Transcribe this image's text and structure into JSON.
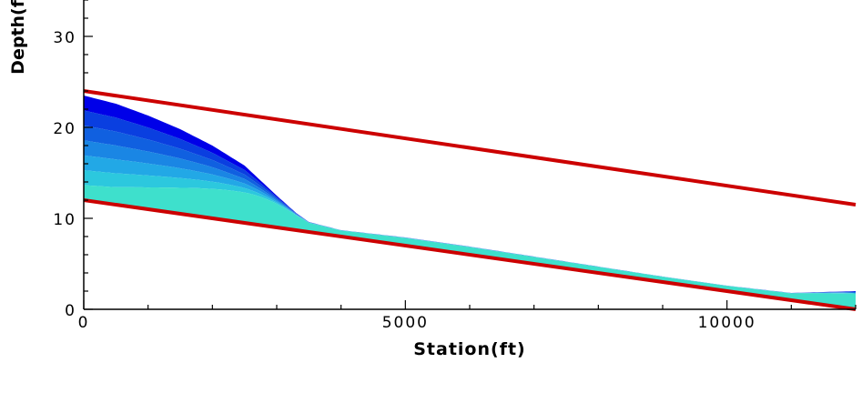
{
  "chart_data": {
    "type": "area",
    "xlabel": "Station(ft)",
    "ylabel": "Depth(f",
    "xlim": [
      0,
      12000
    ],
    "ylim": [
      0,
      34
    ],
    "x_ticks": [
      0,
      5000,
      10000
    ],
    "y_ticks": [
      0,
      10,
      20,
      30
    ],
    "x_tick_labels": [
      "0",
      "5000",
      "10000"
    ],
    "y_tick_labels": [
      "0",
      "10",
      "20",
      "30"
    ],
    "grid": false,
    "colors": {
      "boundary": "#cc0000",
      "fill_levels": [
        "#0000e8",
        "#0a3fe0",
        "#1060e0",
        "#1a86e4",
        "#22a8e6",
        "#2cc8de",
        "#3ee0cc"
      ],
      "axis": "#000000"
    },
    "series": [
      {
        "x": [
          0,
          12000
        ],
        "y": [
          24.0,
          11.5
        ]
      },
      {
        "x": [
          0,
          12000
        ],
        "y": [
          12.0,
          0.0
        ]
      }
    ],
    "water_surface": {
      "x": [
        0,
        500,
        1000,
        1500,
        2000,
        2500,
        3000,
        3300,
        3500,
        4000,
        5000,
        6000,
        7000,
        8000,
        9000,
        10000,
        11000,
        12000
      ],
      "y": [
        23.5,
        22.6,
        21.3,
        19.8,
        18.0,
        15.8,
        12.5,
        10.6,
        9.6,
        8.7,
        7.9,
        6.9,
        5.8,
        4.7,
        3.6,
        2.6,
        1.8,
        2.0
      ]
    },
    "bed": {
      "x": [
        0,
        12000
      ],
      "y": [
        12.0,
        0.0
      ]
    }
  }
}
